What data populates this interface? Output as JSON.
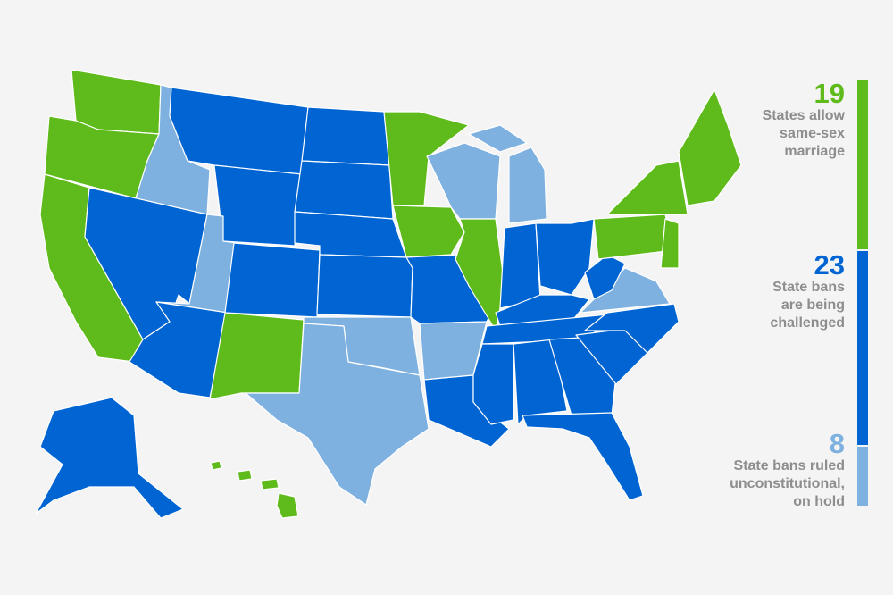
{
  "colors": {
    "allow": "#5fbb1b",
    "challenged": "#0064d2",
    "on_hold": "#7eb1e0",
    "label": "#8e8e8e",
    "background": "#f4f4f4"
  },
  "legend": [
    {
      "key": "allow",
      "count": "19",
      "label_lines": [
        "States allow",
        "same-sex",
        "marriage"
      ]
    },
    {
      "key": "challenged",
      "count": "23",
      "label_lines": [
        "State bans",
        "are being",
        "challenged"
      ]
    },
    {
      "key": "on_hold",
      "count": "8",
      "label_lines": [
        "State bans ruled",
        "unconstitutional,",
        "on hold"
      ]
    }
  ],
  "state_status": {
    "allow": [
      "WA",
      "OR",
      "CA",
      "NM",
      "MN",
      "IA",
      "IL",
      "PA",
      "NY",
      "New England",
      "NJ/MD/DE",
      "HI"
    ],
    "challenged": [
      "NV",
      "MT",
      "WY",
      "AZ",
      "CO",
      "ND",
      "SD",
      "NE",
      "KS",
      "MO",
      "LA",
      "IN",
      "OH",
      "KY",
      "TN",
      "MS",
      "AL",
      "GA",
      "FL",
      "SC",
      "NC",
      "WV",
      "AK"
    ],
    "on_hold": [
      "ID",
      "UT",
      "OK",
      "TX",
      "AR",
      "WI",
      "MI",
      "VA"
    ]
  }
}
